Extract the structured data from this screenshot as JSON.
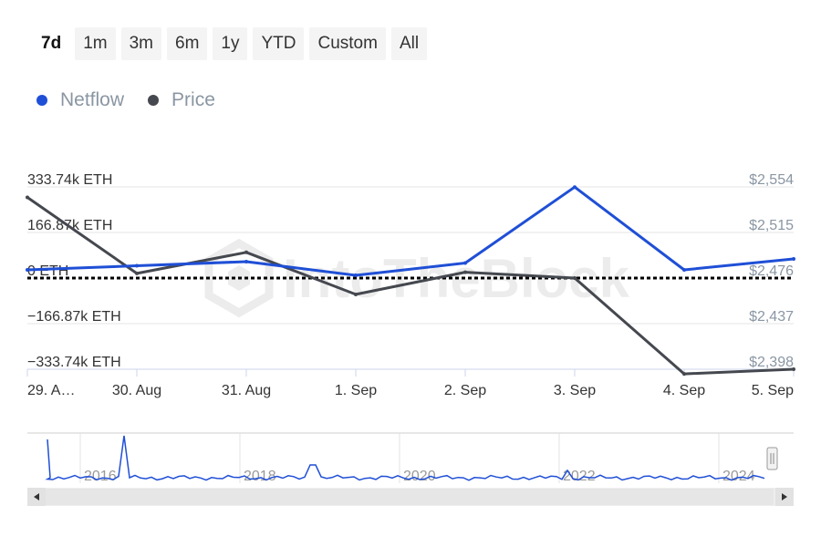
{
  "range_buttons": [
    "7d",
    "1m",
    "3m",
    "6m",
    "1y",
    "YTD",
    "Custom",
    "All"
  ],
  "active_range": "7d",
  "watermark": "IntoTheBlock",
  "colors": {
    "netflow": "#1f4fd6",
    "price": "#45484f",
    "zero_line": "#000000",
    "grid": "#e6e6e6",
    "navigator_line": "#1f4fd6"
  },
  "chart_data": {
    "type": "line",
    "legend": [
      "Netflow",
      "Price"
    ],
    "categories": [
      "29. A…",
      "30. Aug",
      "31. Aug",
      "1. Sep",
      "2. Sep",
      "3. Sep",
      "4. Sep",
      "5. Sep"
    ],
    "series": [
      {
        "name": "Netflow",
        "axis": "left",
        "unit": "ETH",
        "values": [
          30000,
          45000,
          60000,
          10000,
          55000,
          333000,
          30000,
          70000
        ]
      },
      {
        "name": "Price",
        "axis": "right",
        "unit": "USD",
        "values": [
          2545,
          2480,
          2498,
          2462,
          2481,
          2476,
          2394,
          2398
        ]
      }
    ],
    "y_left": {
      "ticks": [
        "333.74k ETH",
        "166.87k ETH",
        "0 ETH",
        "−166.87k ETH",
        "−333.74k ETH"
      ],
      "tick_values": [
        333740,
        166870,
        0,
        -166870,
        -333740
      ],
      "range": [
        -333740,
        333740
      ]
    },
    "y_right": {
      "ticks": [
        "$2,554",
        "$2,515",
        "$2,476",
        "$2,437",
        "$2,398"
      ],
      "tick_values": [
        2554,
        2515,
        2476,
        2437,
        2398
      ],
      "range": [
        2398,
        2554
      ]
    },
    "navigator": {
      "year_labels": [
        "2016",
        "2018",
        "2020",
        "2022",
        "2024"
      ]
    }
  }
}
